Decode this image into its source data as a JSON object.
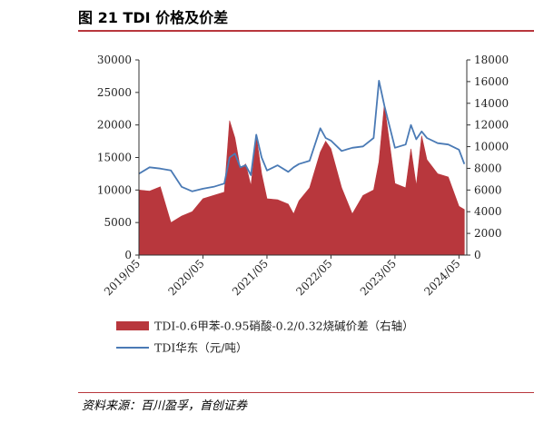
{
  "title": "图 21 TDI 价格及价差",
  "source": "资料来源：百川盈孚，首创证券",
  "chart_data": {
    "type": "area+line",
    "x_ticks": [
      "2019/05",
      "2020/05",
      "2021/05",
      "2022/05",
      "2023/05",
      "2024/05"
    ],
    "x_range": [
      "2019-05-01",
      "2024-06-15"
    ],
    "left_axis": {
      "ticks": [
        "0",
        "5000",
        "10000",
        "15000",
        "20000",
        "25000",
        "30000"
      ],
      "range": [
        0,
        30000
      ]
    },
    "right_axis": {
      "ticks": [
        "0",
        "2000",
        "4000",
        "6000",
        "8000",
        "10000",
        "12000",
        "14000",
        "16000",
        "18000"
      ],
      "range": [
        0,
        18000
      ]
    },
    "legend_position": "bottom",
    "colors": {
      "spread": "#b8373d",
      "price": "#4a7ab5",
      "accent": "#b8373d"
    },
    "series": [
      {
        "name": "TDI-0.6甲苯-0.95硝酸-0.2/0.32烧碱价差（右轴）",
        "axis": "right",
        "kind": "area",
        "x": [
          "2019-05",
          "2019-07",
          "2019-09",
          "2019-11",
          "2020-01",
          "2020-03",
          "2020-05",
          "2020-07",
          "2020-09",
          "2020-10",
          "2020-11",
          "2020-12",
          "2021-01",
          "2021-02",
          "2021-03",
          "2021-04",
          "2021-05",
          "2021-07",
          "2021-09",
          "2021-10",
          "2021-11",
          "2022-01",
          "2022-03",
          "2022-04",
          "2022-05",
          "2022-07",
          "2022-09",
          "2022-11",
          "2023-01",
          "2023-02",
          "2023-03",
          "2023-05",
          "2023-07",
          "2023-08",
          "2023-09",
          "2023-10",
          "2023-11",
          "2024-01",
          "2024-03",
          "2024-05",
          "2024-06"
        ],
        "values": [
          6000,
          5900,
          6300,
          3000,
          3600,
          4000,
          5200,
          5500,
          5800,
          12400,
          10800,
          8000,
          8400,
          6400,
          11000,
          7500,
          5200,
          5100,
          4700,
          3800,
          5000,
          6200,
          9500,
          10500,
          9800,
          6200,
          3800,
          5500,
          6000,
          8600,
          13900,
          6600,
          6200,
          9800,
          6400,
          11000,
          8800,
          7500,
          7200,
          4500,
          4200
        ]
      },
      {
        "name": "TDI华东（元/吨）",
        "axis": "left",
        "kind": "line",
        "x": [
          "2019-05",
          "2019-07",
          "2019-09",
          "2019-11",
          "2020-01",
          "2020-03",
          "2020-05",
          "2020-07",
          "2020-09",
          "2020-10",
          "2020-11",
          "2020-12",
          "2021-01",
          "2021-02",
          "2021-03",
          "2021-04",
          "2021-05",
          "2021-07",
          "2021-09",
          "2021-10",
          "2021-11",
          "2022-01",
          "2022-03",
          "2022-04",
          "2022-05",
          "2022-07",
          "2022-09",
          "2022-11",
          "2023-01",
          "2023-02",
          "2023-03",
          "2023-05",
          "2023-07",
          "2023-08",
          "2023-09",
          "2023-10",
          "2023-11",
          "2024-01",
          "2024-03",
          "2024-05",
          "2024-06"
        ],
        "values": [
          12500,
          13500,
          13300,
          13000,
          10500,
          9800,
          10200,
          10500,
          11000,
          15000,
          15600,
          13500,
          13800,
          12300,
          18500,
          15000,
          13000,
          13800,
          12800,
          13500,
          14000,
          14500,
          19500,
          18000,
          17600,
          16000,
          16500,
          16700,
          18000,
          26800,
          23000,
          16500,
          17000,
          20000,
          17800,
          19000,
          18000,
          17200,
          17000,
          16200,
          14000
        ]
      }
    ]
  }
}
